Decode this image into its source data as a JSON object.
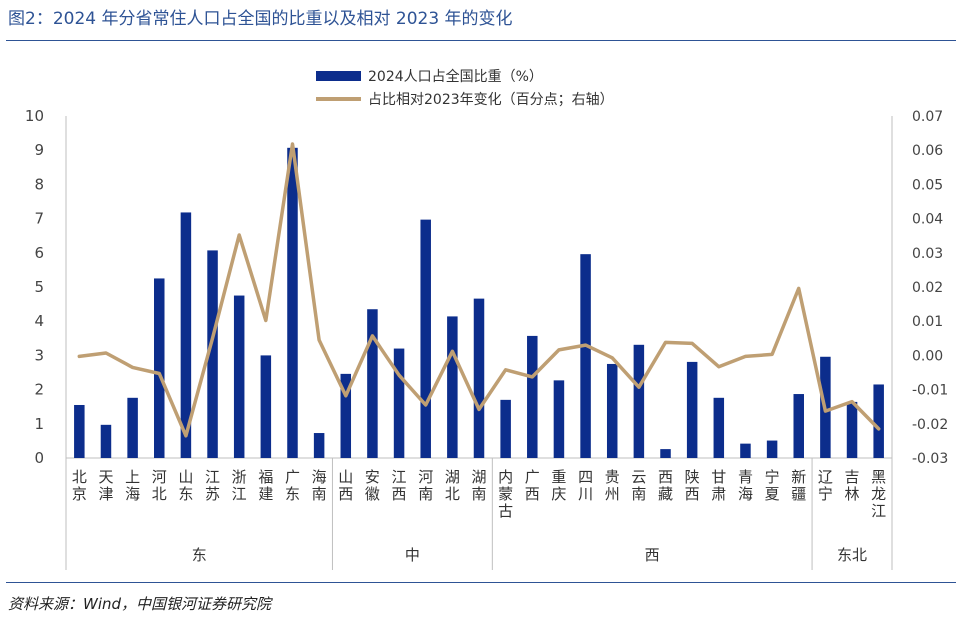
{
  "figure": {
    "title": "图2：2024 年分省常住人口占全国的比重以及相对 2023 年的变化",
    "source": "资料来源：Wind，中国银河证券研究院"
  },
  "colors": {
    "bar": "#0c2d8c",
    "line": "#bf9f73",
    "title": "#2e5395",
    "axis": "#bfbfbf"
  },
  "chart_data": {
    "type": "bar",
    "legend_position": "top-center",
    "grid": false,
    "categories": [
      "北京",
      "天津",
      "上海",
      "河北",
      "山东",
      "江苏",
      "浙江",
      "福建",
      "广东",
      "海南",
      "山西",
      "安徽",
      "江西",
      "河南",
      "湖北",
      "湖南",
      "内蒙古",
      "广西",
      "重庆",
      "四川",
      "贵州",
      "云南",
      "西藏",
      "陕西",
      "甘肃",
      "青海",
      "宁夏",
      "新疆",
      "辽宁",
      "吉林",
      "黑龙江"
    ],
    "groups": [
      {
        "label": "东",
        "count": 10
      },
      {
        "label": "中",
        "count": 6
      },
      {
        "label": "西",
        "count": 12
      },
      {
        "label": "东北",
        "count": 3
      }
    ],
    "series": [
      {
        "name": "2024人口占全国比重（%）",
        "type": "bar",
        "axis": "left",
        "values": [
          1.55,
          0.97,
          1.76,
          5.25,
          7.18,
          6.07,
          4.75,
          3.0,
          9.07,
          0.73,
          2.46,
          4.35,
          3.2,
          6.97,
          4.14,
          4.66,
          1.7,
          3.57,
          2.27,
          5.96,
          2.75,
          3.31,
          0.26,
          2.81,
          1.76,
          0.42,
          0.51,
          1.87,
          2.96,
          1.64,
          2.15
        ]
      },
      {
        "name": "占比相对2023年变化（百分点；右轴）",
        "type": "line",
        "axis": "right",
        "values": [
          -0.0003,
          0.0007,
          -0.0035,
          -0.0053,
          -0.0235,
          0.005,
          0.0352,
          0.0102,
          0.0618,
          0.0045,
          -0.0118,
          0.0057,
          -0.0058,
          -0.0145,
          0.0012,
          -0.0158,
          -0.0042,
          -0.0063,
          0.0016,
          0.003,
          -0.0007,
          -0.0093,
          0.0038,
          0.0035,
          -0.0033,
          -0.0003,
          0.0003,
          0.0196,
          -0.0163,
          -0.0135,
          -0.0215
        ]
      }
    ],
    "y_left": {
      "min": 0,
      "max": 10,
      "ticks": [
        "0",
        "1",
        "2",
        "3",
        "4",
        "5",
        "6",
        "7",
        "8",
        "9",
        "10"
      ]
    },
    "y_right": {
      "min": -0.03,
      "max": 0.07,
      "ticks": [
        "-0.03",
        "-0.02",
        "-0.01",
        "0.00",
        "0.01",
        "0.02",
        "0.03",
        "0.04",
        "0.05",
        "0.06",
        "0.07"
      ]
    }
  }
}
